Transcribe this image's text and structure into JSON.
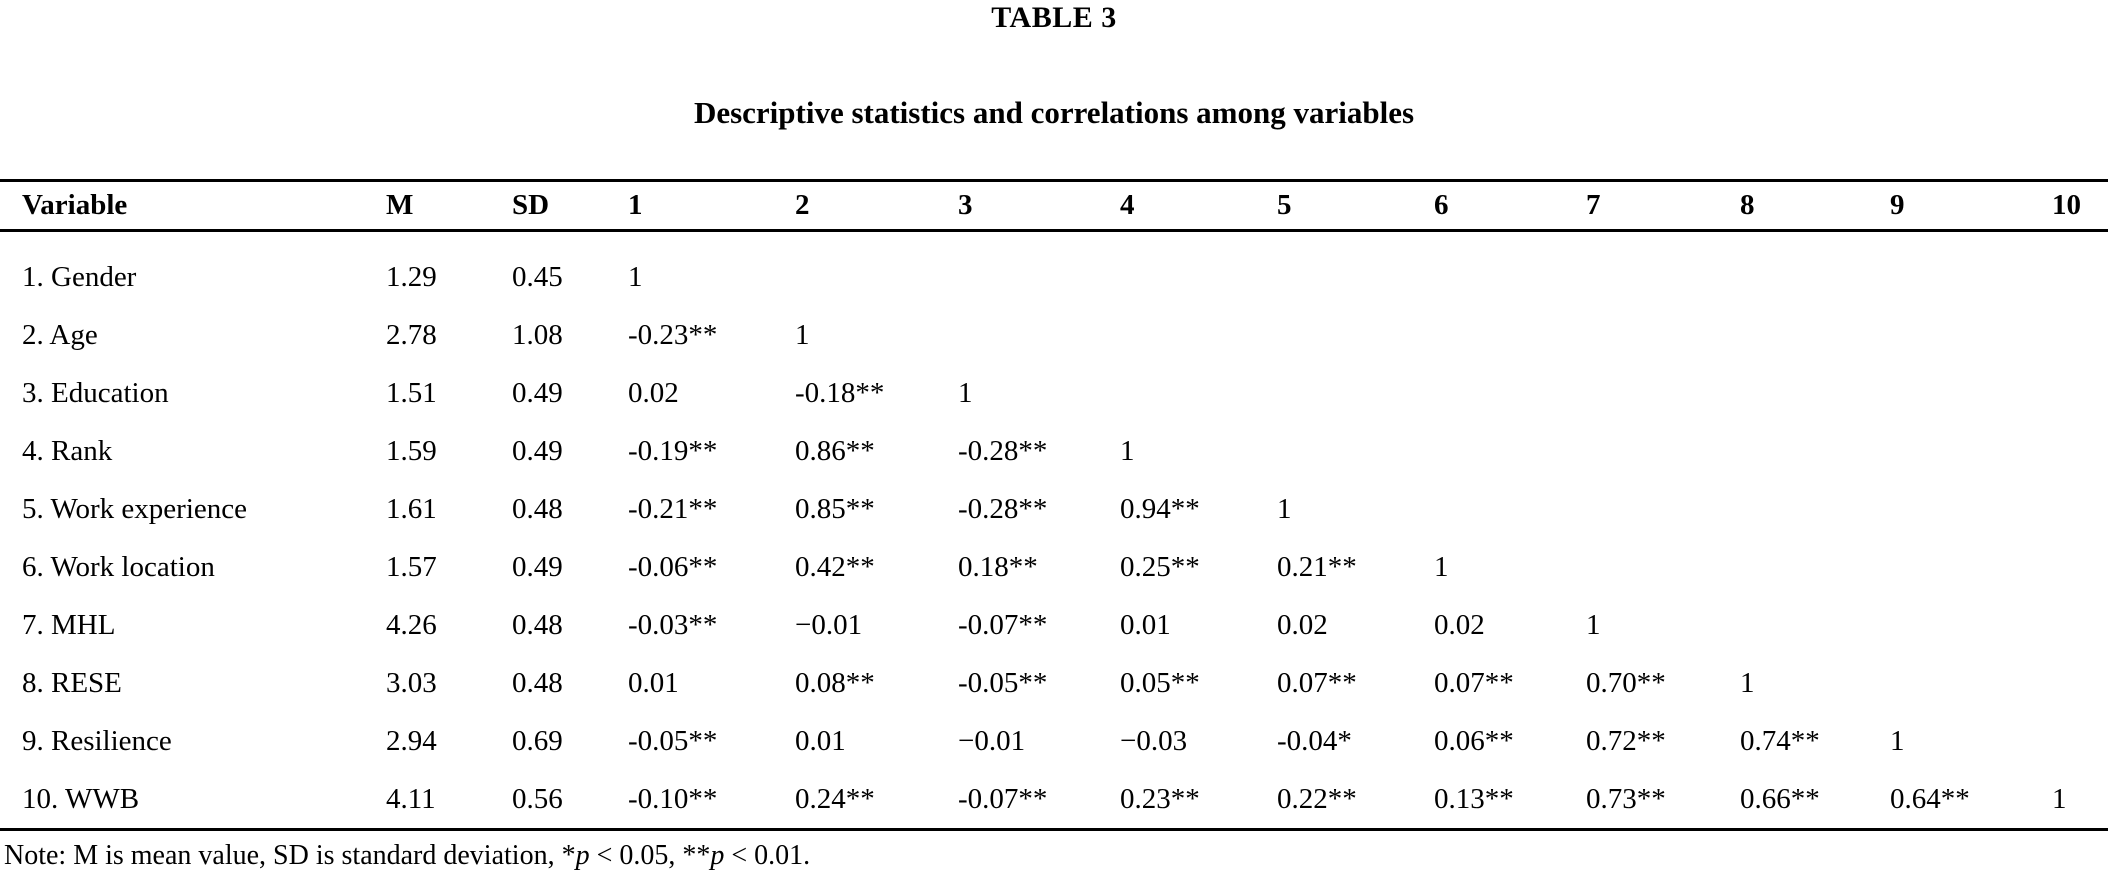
{
  "title": "TABLE 3",
  "subtitle": "Descriptive statistics and correlations among variables",
  "table": {
    "columns": [
      "Variable",
      "M",
      "SD",
      "1",
      "2",
      "3",
      "4",
      "5",
      "6",
      "7",
      "8",
      "9",
      "10"
    ],
    "rows": [
      {
        "variable": "1. Gender",
        "m": "1.29",
        "sd": "0.45",
        "corr": [
          "1"
        ]
      },
      {
        "variable": "2. Age",
        "m": "2.78",
        "sd": "1.08",
        "corr": [
          "-0.23**",
          "1"
        ]
      },
      {
        "variable": "3. Education",
        "m": "1.51",
        "sd": "0.49",
        "corr": [
          "0.02",
          "-0.18**",
          "1"
        ]
      },
      {
        "variable": "4. Rank",
        "m": "1.59",
        "sd": "0.49",
        "corr": [
          "-0.19**",
          "0.86**",
          "-0.28**",
          "1"
        ]
      },
      {
        "variable": "5. Work experience",
        "m": "1.61",
        "sd": "0.48",
        "corr": [
          "-0.21**",
          "0.85**",
          "-0.28**",
          "0.94**",
          "1"
        ]
      },
      {
        "variable": "6. Work location",
        "m": "1.57",
        "sd": "0.49",
        "corr": [
          "-0.06**",
          "0.42**",
          "0.18**",
          "0.25**",
          "0.21**",
          "1"
        ]
      },
      {
        "variable": "7. MHL",
        "m": "4.26",
        "sd": "0.48",
        "corr": [
          "-0.03**",
          "−0.01",
          "-0.07**",
          "0.01",
          "0.02",
          "0.02",
          "1"
        ]
      },
      {
        "variable": "8. RESE",
        "m": "3.03",
        "sd": "0.48",
        "corr": [
          "0.01",
          "0.08**",
          "-0.05**",
          "0.05**",
          "0.07**",
          "0.07**",
          "0.70**",
          "1"
        ]
      },
      {
        "variable": "9. Resilience",
        "m": "2.94",
        "sd": "0.69",
        "corr": [
          "-0.05**",
          "0.01",
          "−0.01",
          "−0.03",
          "-0.04*",
          "0.06**",
          "0.72**",
          "0.74**",
          "1"
        ]
      },
      {
        "variable": "10. WWB",
        "m": "4.11",
        "sd": "0.56",
        "corr": [
          "-0.10**",
          "0.24**",
          "-0.07**",
          "0.23**",
          "0.22**",
          "0.13**",
          "0.73**",
          "0.66**",
          "0.64**",
          "1"
        ]
      }
    ]
  },
  "note": {
    "prefix": "Note: M is mean value, SD is standard deviation, ",
    "sig1_star": "*",
    "sig1_var": "p",
    "sig1_mid": " < 0.05, ",
    "sig2_star": "**",
    "sig2_var": "p",
    "sig2_rest": " < 0.01."
  }
}
